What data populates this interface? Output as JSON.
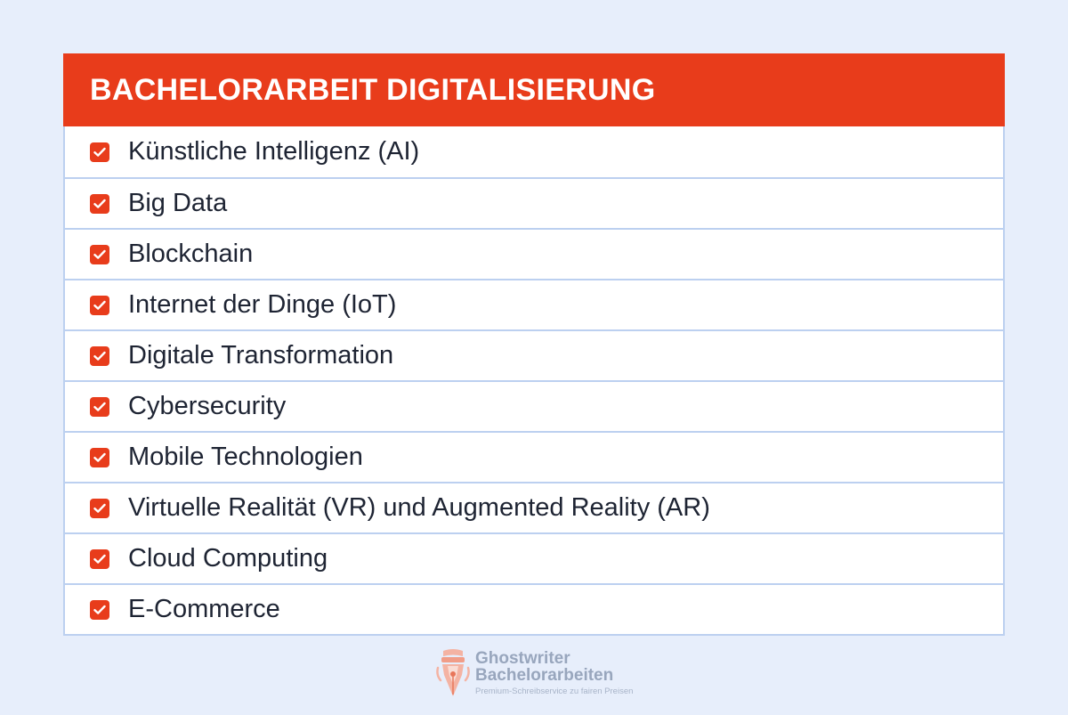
{
  "title": "BACHELORARBEIT DIGITALISIERUNG",
  "items": [
    {
      "label": "Künstliche Intelligenz (AI)",
      "icon": "checkbox-checked-icon"
    },
    {
      "label": "Big Data",
      "icon": "checkbox-checked-icon"
    },
    {
      "label": "Blockchain",
      "icon": "checkbox-checked-icon"
    },
    {
      "label": "Internet der Dinge (IoT)",
      "icon": "checkbox-checked-icon"
    },
    {
      "label": "Digitale Transformation",
      "icon": "checkbox-checked-icon"
    },
    {
      "label": "Cybersecurity",
      "icon": "checkbox-checked-icon"
    },
    {
      "label": "Mobile Technologien",
      "icon": "checkbox-checked-icon"
    },
    {
      "label": "Virtuelle Realität (VR) und Augmented Reality (AR)",
      "icon": "checkbox-checked-icon"
    },
    {
      "label": "Cloud Computing",
      "icon": "checkbox-checked-icon"
    },
    {
      "label": "E-Commerce",
      "icon": "checkbox-checked-icon"
    }
  ],
  "logo": {
    "line1": "Ghostwriter",
    "line2": "Bachelorarbeiten",
    "tagline": "Premium-Schreibservice zu fairen Preisen",
    "icon": "pen-nib-icon"
  },
  "colors": {
    "accent": "#e83c1b",
    "background": "#e7eefb",
    "border": "#bcd0f0",
    "text": "#1e2433",
    "logo_text": "#98a6bd"
  }
}
